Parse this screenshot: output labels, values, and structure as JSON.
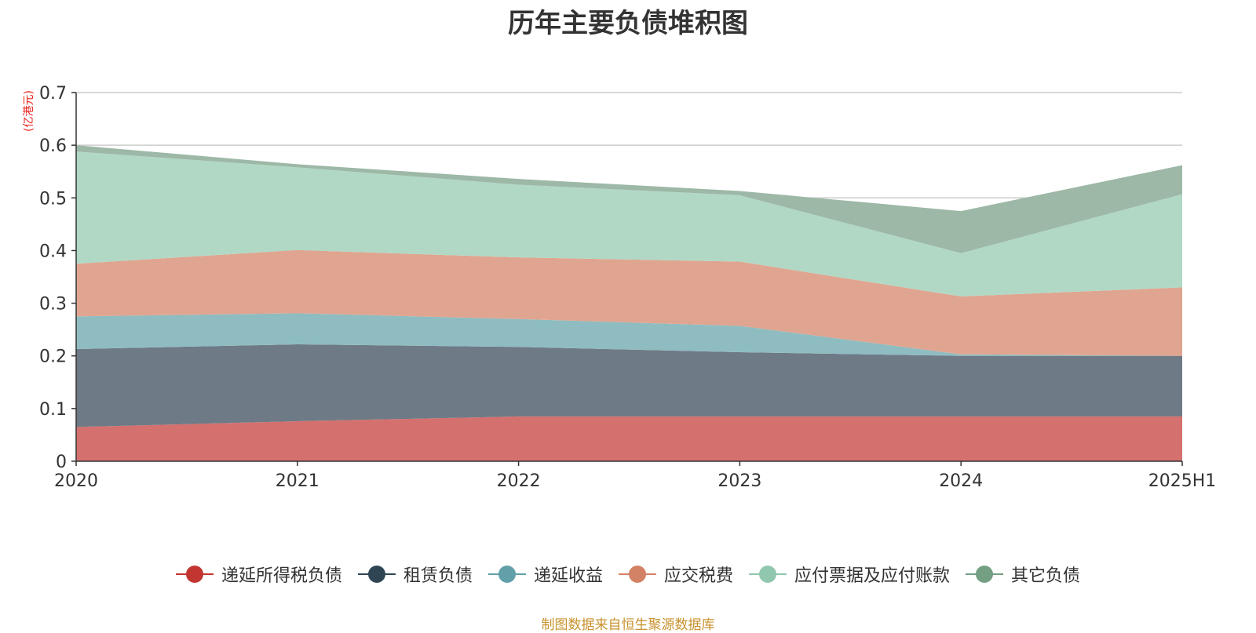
{
  "title": "历年主要负债堆积图",
  "unit_label": "(亿港元)",
  "footer": "制图数据来自恒生聚源数据库",
  "chart_data": {
    "type": "area",
    "stacked": true,
    "title": "历年主要负债堆积图",
    "ylabel": "(亿港元)",
    "x": [
      "2020",
      "2021",
      "2022",
      "2023",
      "2024",
      "2025H1"
    ],
    "ylim": [
      0,
      0.7
    ],
    "yticks": [
      0,
      0.1,
      0.2,
      0.3,
      0.4,
      0.5,
      0.6,
      0.7
    ],
    "ytick_labels": [
      "0",
      "0.1",
      "0.2",
      "0.3",
      "0.4",
      "0.5",
      "0.6",
      "0.7"
    ],
    "grid": true,
    "legend_position": "bottom",
    "series": [
      {
        "name": "递延所得税负债",
        "color": "#c23531",
        "fill": "#d4706e",
        "values": [
          0.065,
          0.076,
          0.085,
          0.085,
          0.085,
          0.085
        ]
      },
      {
        "name": "租赁负债",
        "color": "#2f4554",
        "fill": "#6e7a86",
        "values": [
          0.148,
          0.146,
          0.132,
          0.122,
          0.115,
          0.115
        ]
      },
      {
        "name": "递延收益",
        "color": "#61a0a8",
        "fill": "#8fbcc1",
        "values": [
          0.062,
          0.059,
          0.053,
          0.05,
          0.003,
          0.0
        ]
      },
      {
        "name": "应交税费",
        "color": "#d48265",
        "fill": "#e0a590",
        "values": [
          0.1,
          0.12,
          0.117,
          0.122,
          0.11,
          0.13
        ]
      },
      {
        "name": "应付票据及应付账款",
        "color": "#91c7ae",
        "fill": "#b1d8c5",
        "values": [
          0.213,
          0.157,
          0.138,
          0.126,
          0.082,
          0.177
        ]
      },
      {
        "name": "其它负债",
        "color": "#749f83",
        "fill": "#9db8a6",
        "values": [
          0.012,
          0.006,
          0.011,
          0.008,
          0.08,
          0.055
        ]
      }
    ]
  }
}
